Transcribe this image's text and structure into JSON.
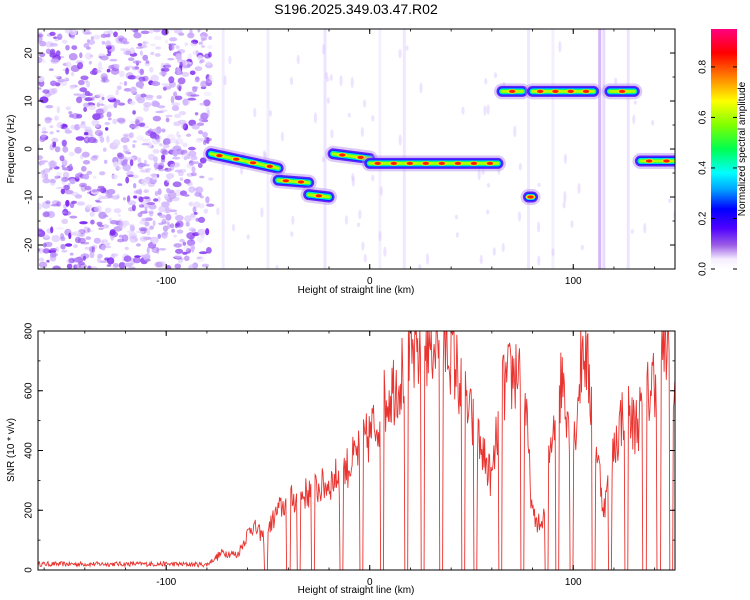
{
  "title": "S196.2025.349.03.47.R02",
  "chart_data": [
    {
      "type": "heatmap",
      "name": "spectrogram",
      "xlabel": "Height of straight line (km)",
      "ylabel": "Frequency (Hz)",
      "xlim": [
        -163,
        150
      ],
      "ylim": [
        -25,
        25
      ],
      "xticks": [
        -100,
        0,
        100
      ],
      "xtick_labels": [
        "-100",
        "0",
        "100"
      ],
      "yticks": [
        -20,
        -10,
        0,
        10,
        20
      ],
      "ytick_labels": [
        "-20",
        "-10",
        "0",
        "10",
        "20"
      ],
      "noise_region_x": [
        -163,
        -78
      ],
      "ridge_segments": [
        {
          "x": [
            -78,
            -45
          ],
          "freq": [
            -1,
            -4
          ]
        },
        {
          "x": [
            -45,
            -30
          ],
          "freq": [
            -6.5,
            -7
          ]
        },
        {
          "x": [
            -30,
            -20
          ],
          "freq": [
            -9.5,
            -10
          ]
        },
        {
          "x": [
            -18,
            0
          ],
          "freq": [
            -1,
            -2
          ]
        },
        {
          "x": [
            0,
            63
          ],
          "freq": [
            -3,
            -3
          ]
        },
        {
          "x": [
            65,
            75
          ],
          "freq": [
            12,
            12
          ]
        },
        {
          "x": [
            78,
            80
          ],
          "freq": [
            -10,
            -10
          ]
        },
        {
          "x": [
            80,
            110
          ],
          "freq": [
            12,
            12
          ]
        },
        {
          "x": [
            118,
            130
          ],
          "freq": [
            12,
            12
          ]
        },
        {
          "x": [
            133,
            150
          ],
          "freq": [
            -2.5,
            -2.5
          ]
        }
      ],
      "colorbar": {
        "label": "Normalized spectral amplitude",
        "range": [
          0,
          0.95
        ],
        "ticks": [
          0.0,
          0.2,
          0.4,
          0.6,
          0.8
        ],
        "tick_labels": [
          "0.0",
          "0.2",
          "0.4",
          "0.6",
          "0.8"
        ]
      }
    },
    {
      "type": "line",
      "name": "snr",
      "xlabel": "Height of straight line (km)",
      "ylabel": "SNR (10 * v/v)",
      "xlim": [
        -163,
        150
      ],
      "ylim": [
        0,
        800
      ],
      "xticks": [
        -100,
        0,
        100
      ],
      "xtick_labels": [
        "-100",
        "0",
        "100"
      ],
      "yticks": [
        0,
        200,
        400,
        600,
        800
      ],
      "ytick_labels": [
        "0",
        "200",
        "400",
        "600",
        "800"
      ],
      "color": "#e8332f",
      "series": {
        "x": [
          -163,
          -140,
          -120,
          -100,
          -80,
          -72,
          -65,
          -58,
          -52,
          -45,
          -40,
          -30,
          -20,
          -10,
          0,
          10,
          20,
          30,
          40,
          45,
          50,
          55,
          60,
          65,
          70,
          75,
          80,
          85,
          90,
          95,
          100,
          105,
          110,
          115,
          120,
          125,
          130,
          135,
          140,
          145,
          150
        ],
        "snr": [
          20,
          20,
          20,
          20,
          18,
          60,
          50,
          150,
          110,
          200,
          230,
          260,
          290,
          350,
          450,
          600,
          700,
          780,
          750,
          600,
          500,
          400,
          300,
          600,
          650,
          700,
          180,
          140,
          500,
          650,
          400,
          780,
          500,
          200,
          400,
          550,
          480,
          550,
          650,
          750,
          600
        ]
      },
      "dropouts_x": [
        -51,
        -40,
        -35,
        -28,
        -14,
        -4,
        6,
        18,
        26,
        35,
        46,
        52,
        64,
        75,
        87,
        92,
        99,
        110,
        118,
        126,
        135,
        142,
        148
      ]
    }
  ]
}
